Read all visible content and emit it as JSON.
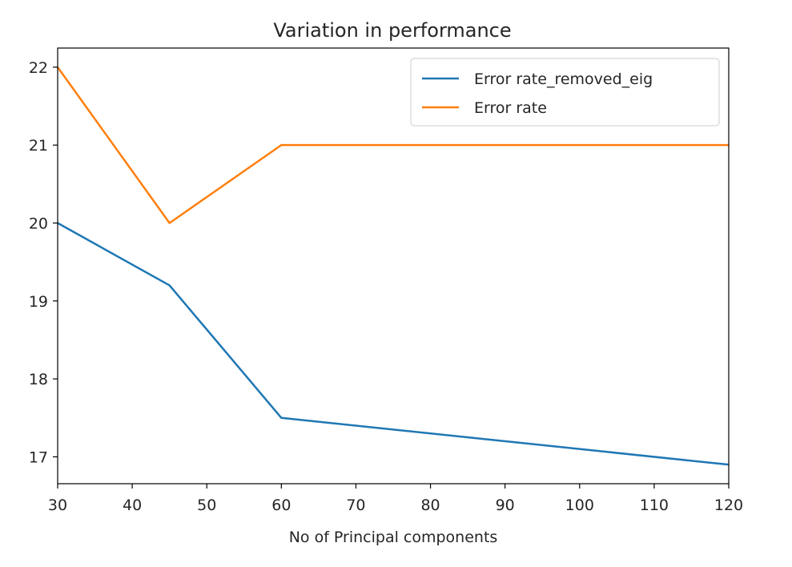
{
  "chart_data": {
    "type": "line",
    "title": "Variation in performance",
    "xlabel": "No of Principal components",
    "ylabel": "",
    "x": [
      30,
      45,
      60,
      120
    ],
    "series": [
      {
        "name": "Error rate_removed_eig",
        "color": "#1f77b4",
        "values": [
          20.0,
          19.2,
          17.5,
          16.9
        ]
      },
      {
        "name": "Error rate",
        "color": "#ff7f0e",
        "values": [
          22.0,
          20.0,
          21.0,
          21.0
        ]
      }
    ],
    "xlim": [
      30,
      120
    ],
    "ylim": [
      16.655,
      22.245
    ],
    "xticks": [
      30,
      40,
      50,
      60,
      70,
      80,
      90,
      100,
      110,
      120
    ],
    "yticks": [
      17,
      18,
      19,
      20,
      21,
      22
    ],
    "grid": false,
    "legend_position": "top-right"
  }
}
